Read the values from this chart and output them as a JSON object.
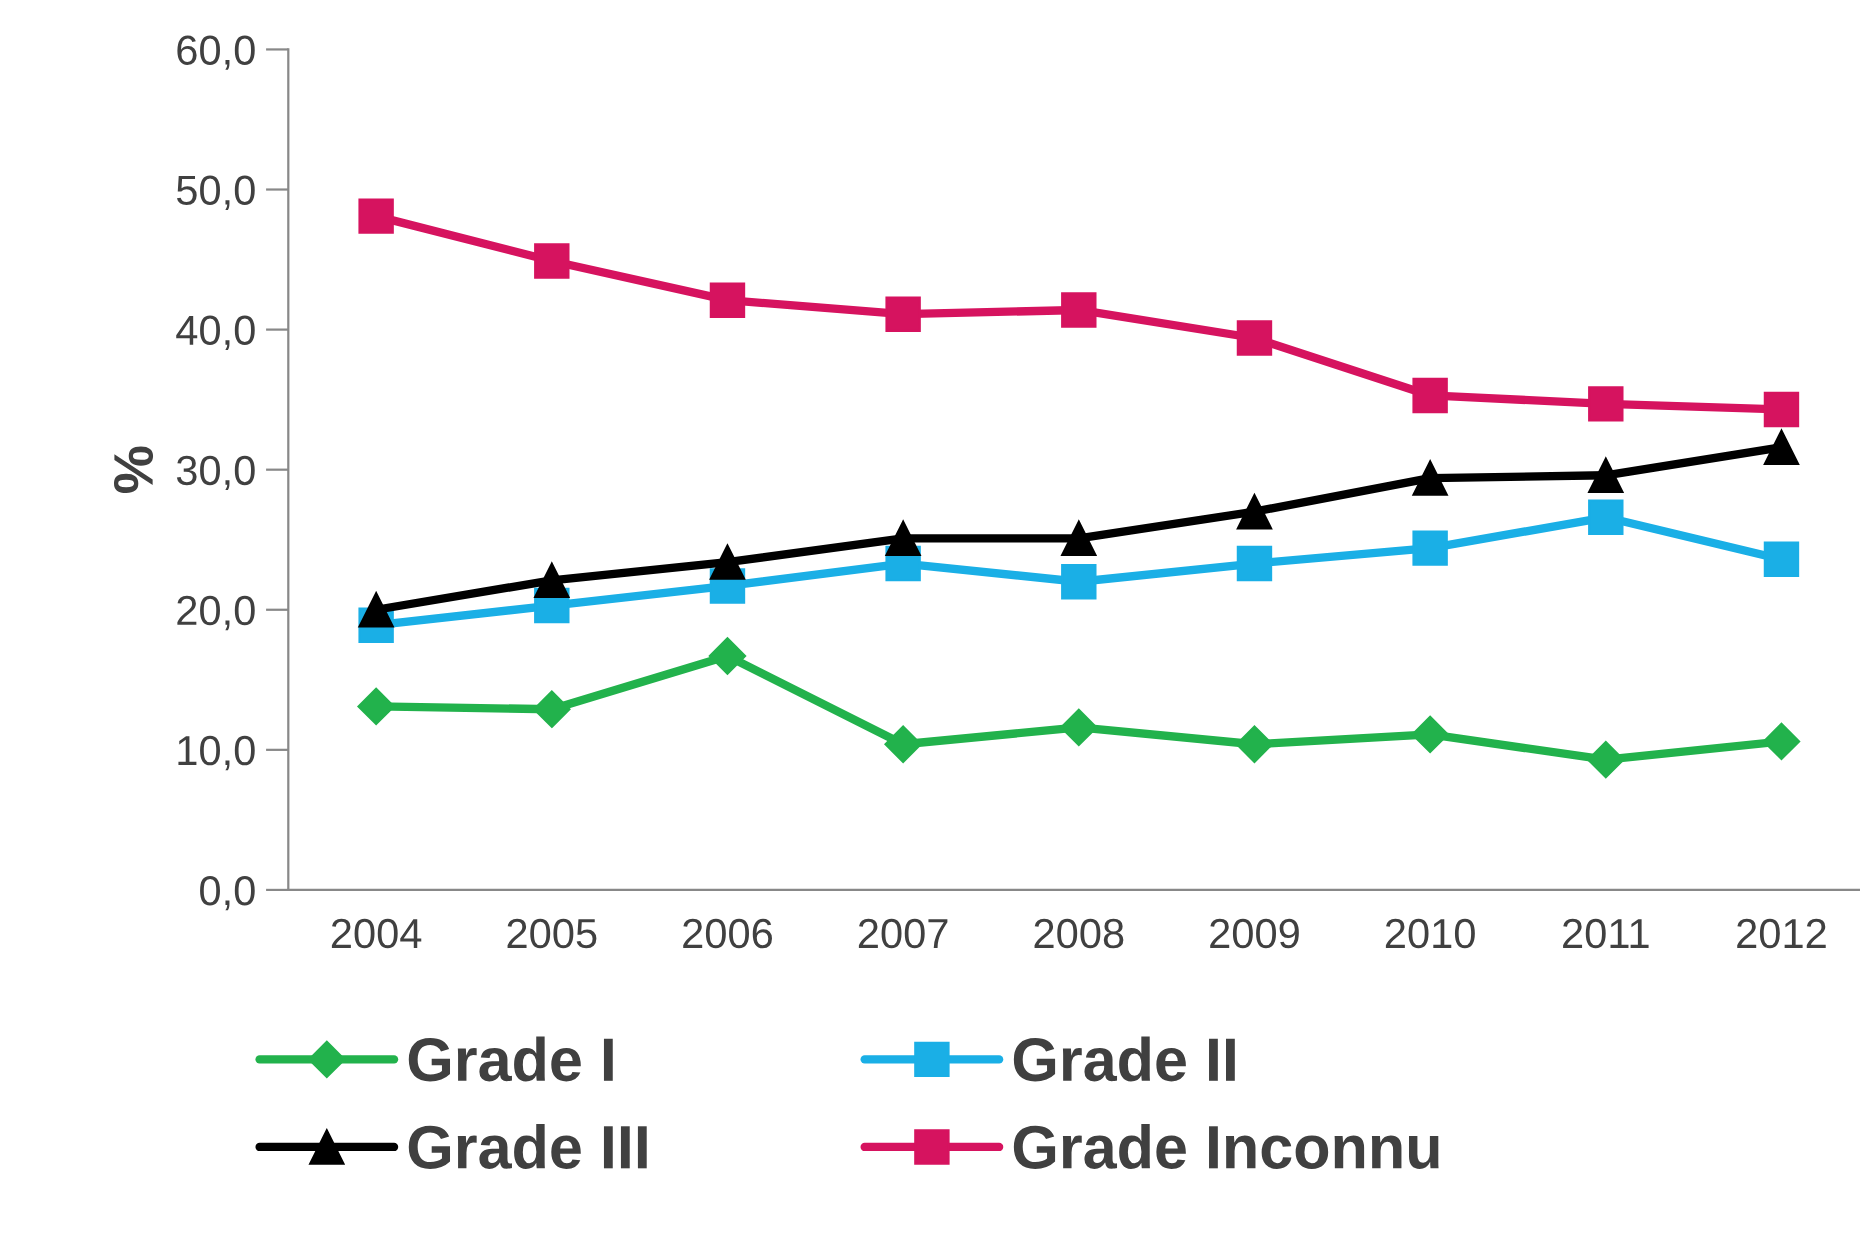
{
  "chart_data": {
    "type": "line",
    "ylabel": "%",
    "categories": [
      "2004",
      "2005",
      "2006",
      "2007",
      "2008",
      "2009",
      "2010",
      "2011",
      "2012"
    ],
    "series": [
      {
        "name": "Grade I",
        "color": "#22b24c",
        "marker": "diamond",
        "values": [
          13.1,
          12.9,
          16.7,
          10.4,
          11.6,
          10.4,
          11.1,
          9.3,
          10.6
        ]
      },
      {
        "name": "Grade II",
        "color": "#1aafe6",
        "marker": "square",
        "values": [
          18.9,
          20.3,
          21.7,
          23.3,
          22.0,
          23.3,
          24.4,
          26.6,
          23.6
        ]
      },
      {
        "name": "Grade III",
        "color": "#000000",
        "marker": "triangle",
        "values": [
          20.0,
          22.1,
          23.4,
          25.1,
          25.1,
          27.0,
          29.4,
          29.6,
          31.6
        ]
      },
      {
        "name": "Grade Inconnu",
        "color": "#d6135f",
        "marker": "square",
        "values": [
          48.1,
          44.9,
          42.1,
          41.1,
          41.4,
          39.4,
          35.3,
          34.7,
          34.3
        ]
      }
    ],
    "ylim": [
      0,
      60
    ],
    "yticks": [
      {
        "value": 0,
        "label": "0,0"
      },
      {
        "value": 10,
        "label": "10,0"
      },
      {
        "value": 20,
        "label": "20,0"
      },
      {
        "value": 30,
        "label": "30,0"
      },
      {
        "value": 40,
        "label": "40,0"
      },
      {
        "value": 50,
        "label": "50,0"
      },
      {
        "value": 60,
        "label": "60,0"
      }
    ],
    "grid": false,
    "legend": "bottom",
    "line_style": "solid"
  }
}
